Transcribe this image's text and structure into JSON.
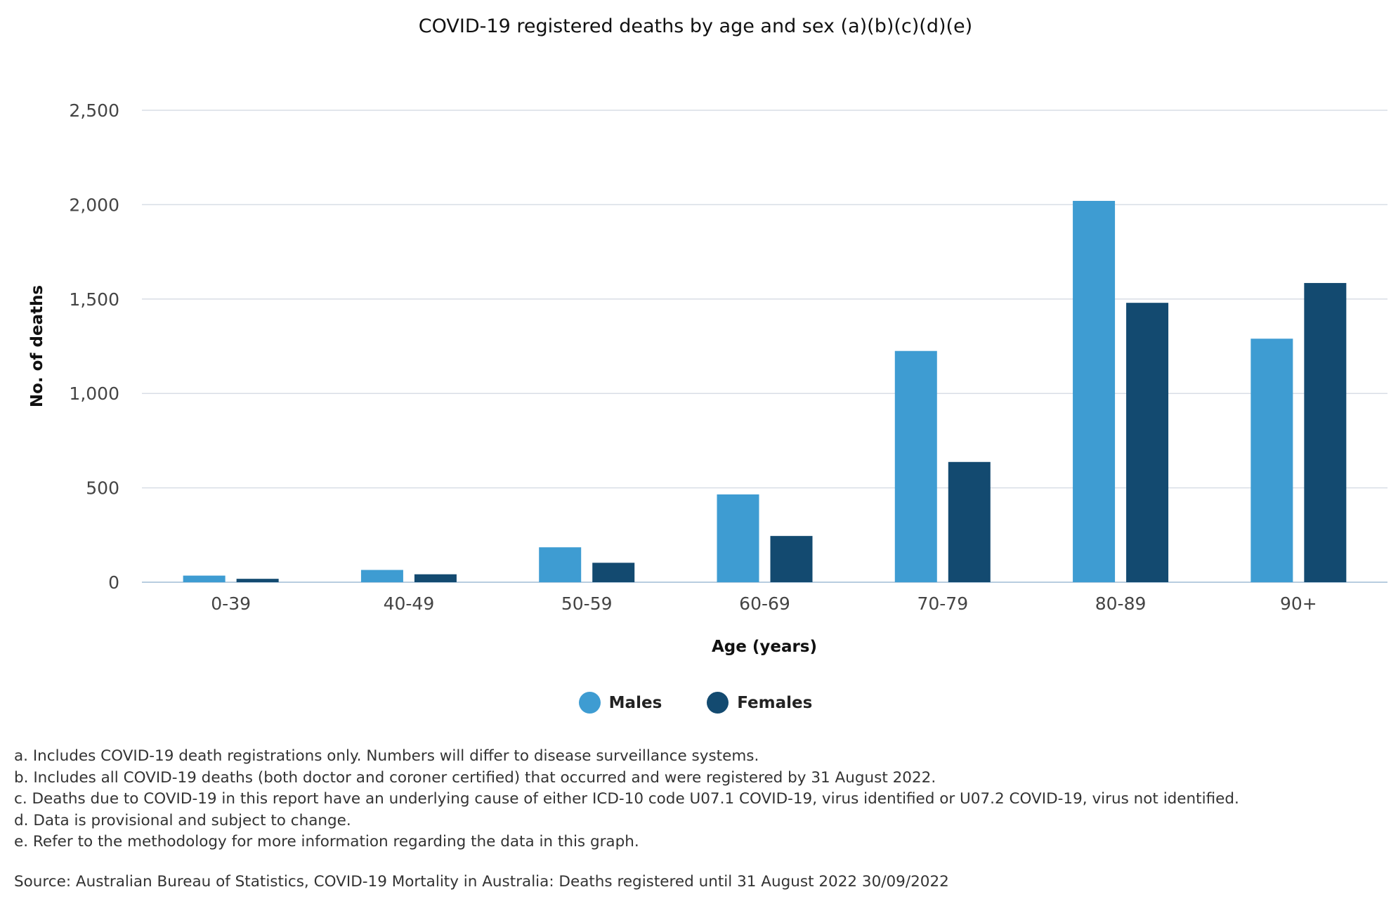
{
  "title": "COVID-19 registered deaths by age and sex (a)(b)(c)(d)(e)",
  "colors": {
    "males": "#3e9cd2",
    "females": "#134a70",
    "grid": "#d8dee6",
    "axis": "#b8cde0"
  },
  "chart_data": {
    "type": "bar",
    "title": "COVID-19 registered deaths by age and sex (a)(b)(c)(d)(e)",
    "xlabel": "Age (years)",
    "ylabel": "No. of deaths",
    "categories": [
      "0-39",
      "40-49",
      "50-59",
      "60-69",
      "70-79",
      "80-89",
      "90+"
    ],
    "series": [
      {
        "name": "Males",
        "values": [
          35,
          65,
          185,
          465,
          1225,
          2020,
          1290
        ]
      },
      {
        "name": "Females",
        "values": [
          18,
          42,
          103,
          245,
          637,
          1480,
          1585
        ]
      }
    ],
    "ylim": [
      0,
      2500
    ],
    "yticks": [
      0,
      500,
      1000,
      1500,
      2000,
      2500
    ],
    "ytick_labels": [
      "0",
      "500",
      "1,000",
      "1,500",
      "2,000",
      "2,500"
    ],
    "grid": true,
    "legend_position": "bottom-center"
  },
  "legend": {
    "males": "Males",
    "females": "Females"
  },
  "notes": [
    "a. Includes COVID-19 death registrations only. Numbers will differ to disease surveillance systems.",
    "b. Includes all COVID-19 deaths (both doctor and coroner certified) that occurred and were registered by 31 August 2022.",
    "c. Deaths due to COVID-19 in this report have an underlying cause of either ICD-10 code U07.1 COVID-19, virus identified or U07.2 COVID-19, virus not identified.",
    "d. Data is provisional and subject to change.",
    "e. Refer to the methodology for more information regarding the data in this graph."
  ],
  "source": "Source: Australian Bureau of Statistics, COVID-19 Mortality in Australia: Deaths registered until 31 August 2022 30/09/2022"
}
